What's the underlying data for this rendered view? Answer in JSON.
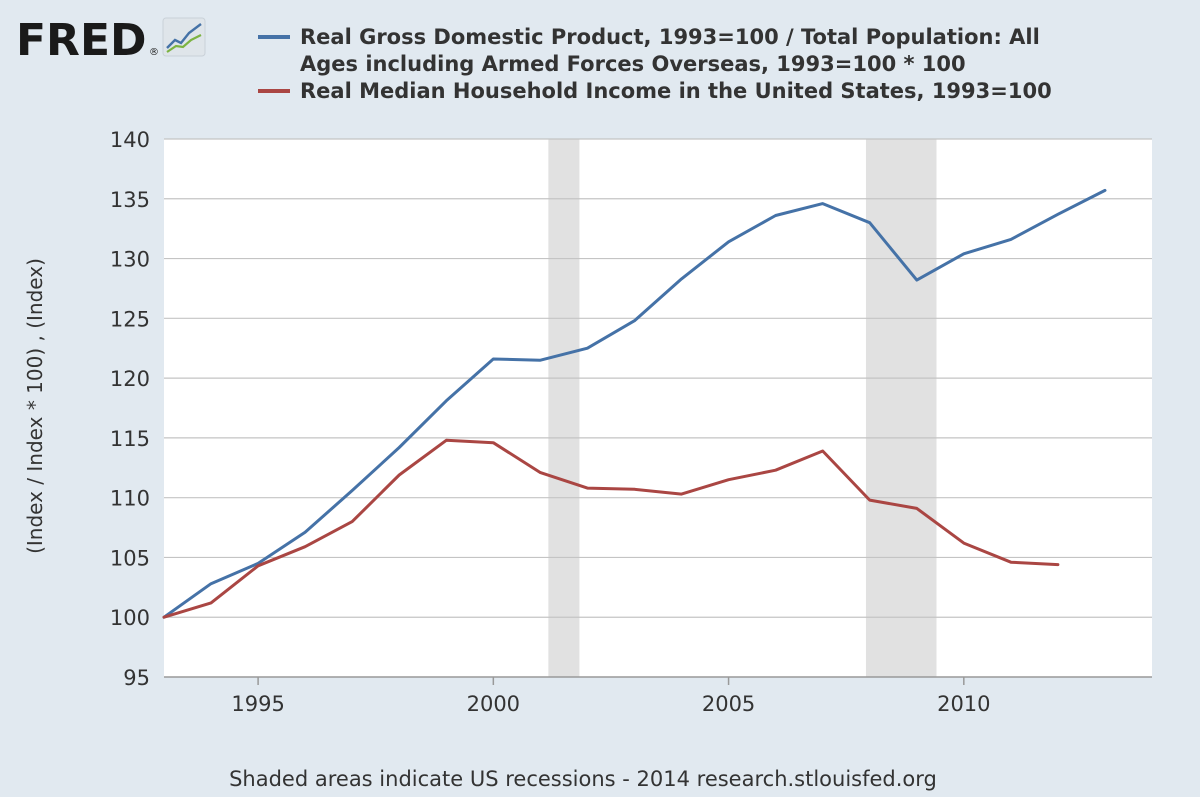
{
  "header": {
    "logo_text": "FRED",
    "logo_mark": "®"
  },
  "footer": {
    "note": "Shaded areas indicate US recessions - 2014 research.stlouisfed.org"
  },
  "colors": {
    "background": "#e1e9f0",
    "plot_background": "#ffffff",
    "grid": "#c4c4c4",
    "recession": "#e1e1e1",
    "series_gdp": "#4572a7",
    "series_income": "#aa4643"
  },
  "chart_data": {
    "type": "line",
    "title": "",
    "xlabel": "",
    "ylabel": "(Index / Index * 100) , (Index)",
    "xlim": [
      1993,
      2014
    ],
    "ylim": [
      95,
      140
    ],
    "xticks": [
      1995,
      2000,
      2005,
      2010
    ],
    "yticks": [
      95,
      100,
      105,
      110,
      115,
      120,
      125,
      130,
      135,
      140
    ],
    "grid": true,
    "legend_position": "top",
    "recessions": [
      [
        2001.17,
        2001.83
      ],
      [
        2007.92,
        2009.42
      ]
    ],
    "series": [
      {
        "name": "Real Gross Domestic Product, 1993=100 / Total Population: All Ages including Armed Forces Overseas, 1993=100 * 100",
        "legend_lines": [
          "Real Gross Domestic Product, 1993=100 / Total Population: All",
          "Ages including Armed Forces Overseas, 1993=100 * 100"
        ],
        "color": "#4572a7",
        "x": [
          1993,
          1994,
          1995,
          1996,
          1997,
          1998,
          1999,
          2000,
          2001,
          2002,
          2003,
          2004,
          2005,
          2006,
          2007,
          2008,
          2009,
          2010,
          2011,
          2012,
          2013
        ],
        "y": [
          100.0,
          102.8,
          104.5,
          107.1,
          110.6,
          114.2,
          118.1,
          121.6,
          121.5,
          122.5,
          124.8,
          128.3,
          131.4,
          133.6,
          134.6,
          133.0,
          128.2,
          130.4,
          131.6,
          133.7,
          135.7
        ]
      },
      {
        "name": "Real Median Household Income in the United States, 1993=100",
        "legend_lines": [
          "Real Median Household Income in the United States, 1993=100"
        ],
        "color": "#aa4643",
        "x": [
          1993,
          1994,
          1995,
          1996,
          1997,
          1998,
          1999,
          2000,
          2001,
          2002,
          2003,
          2004,
          2005,
          2006,
          2007,
          2008,
          2009,
          2010,
          2011,
          2012
        ],
        "y": [
          100.0,
          101.2,
          104.3,
          105.9,
          108.0,
          111.9,
          114.8,
          114.6,
          112.1,
          110.8,
          110.7,
          110.3,
          111.5,
          112.3,
          113.9,
          109.8,
          109.1,
          106.2,
          104.6,
          104.4
        ]
      }
    ]
  }
}
